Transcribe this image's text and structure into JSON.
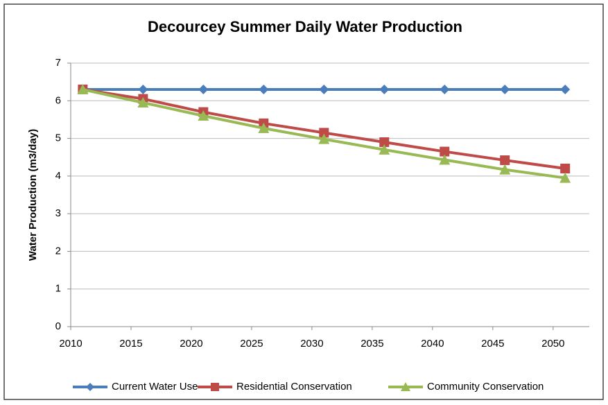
{
  "chart_data": {
    "type": "line",
    "title": "Decourcey Summer Daily Water Production",
    "y_label": "Water Production (m3/day)",
    "x": [
      2011,
      2016,
      2021,
      2026,
      2031,
      2036,
      2041,
      2046,
      2051
    ],
    "series": [
      {
        "name": "Current Water Use",
        "color": "#4a7ebb",
        "marker": "diamond",
        "values": [
          6.3,
          6.3,
          6.3,
          6.3,
          6.3,
          6.3,
          6.3,
          6.3,
          6.3
        ]
      },
      {
        "name": "Residential Conservation",
        "color": "#be4b48",
        "marker": "square",
        "values": [
          6.3,
          6.05,
          5.7,
          5.4,
          5.15,
          4.9,
          4.65,
          4.42,
          4.2
        ]
      },
      {
        "name": "Community Conservation",
        "color": "#98b954",
        "marker": "triangle",
        "values": [
          6.3,
          5.95,
          5.6,
          5.27,
          4.98,
          4.7,
          4.43,
          4.17,
          3.95
        ]
      }
    ],
    "xlim": [
      2010,
      2053
    ],
    "xticks": [
      2010,
      2015,
      2020,
      2025,
      2030,
      2035,
      2040,
      2045,
      2050
    ],
    "ylim": [
      0,
      7
    ],
    "yticks": [
      0,
      1,
      2,
      3,
      4,
      5,
      6,
      7
    ],
    "grid": true,
    "legend": "bottom"
  }
}
